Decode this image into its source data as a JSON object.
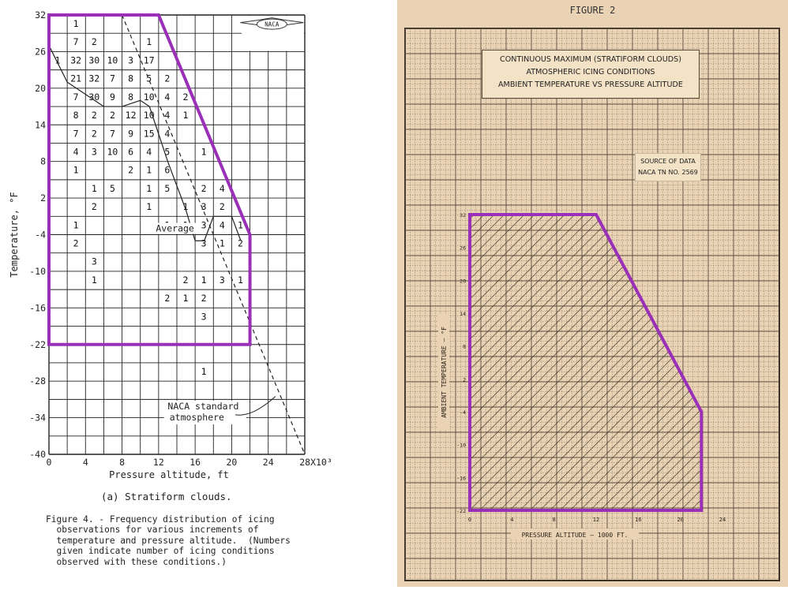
{
  "left": {
    "y_axis_label": "Temperature, °F",
    "x_axis_label": "Pressure altitude, ft",
    "x_tick_labels": [
      "0",
      "4",
      "8",
      "12",
      "16",
      "20",
      "24",
      "28X10³"
    ],
    "y_tick_labels": [
      "32",
      "26",
      "20",
      "14",
      "8",
      "2",
      "-4",
      "-10",
      "-16",
      "-22",
      "-28",
      "-34",
      "-40"
    ],
    "logo_text": "NACA",
    "subcaption": "(a) Stratiform clouds.",
    "caption": "Figure 4. - Frequency distribution of icing\n  observations for various increments of\n  temperature and pressure altitude.  (Numbers\n  given indicate number of icing conditions\n  observed with these conditions.)",
    "annotation_average": "Average",
    "annotation_naca_line1": "NACA standard",
    "annotation_naca_line2": "atmosphere",
    "colors": {
      "envelope": "#9b30b8",
      "grid": "#222222"
    }
  },
  "right": {
    "figure_label": "FIGURE 2",
    "title_line1": "CONTINUOUS MAXIMUM (STRATIFORM CLOUDS)",
    "title_line2": "ATMOSPHERIC ICING CONDITIONS",
    "title_line3": "AMBIENT TEMPERATURE VS PRESSURE ALTITUDE",
    "source_line1": "SOURCE OF DATA",
    "source_line2": "NACA TN NO. 2569",
    "y_axis_label": "AMBIENT TEMPERATURE – °F",
    "x_axis_label": "PRESSURE ALTITUDE – 1000 FT.",
    "x_tick_labels": [
      "0",
      "4",
      "8",
      "12",
      "16",
      "20",
      "24"
    ],
    "y_tick_labels": [
      "32",
      "26",
      "20",
      "14",
      "8",
      "2",
      "-4",
      "-10",
      "-16",
      "-22"
    ],
    "colors": {
      "paper": "#ead3b4",
      "envelope": "#9b30b8"
    }
  },
  "chart_data": [
    {
      "type": "table",
      "x_unit": "1000 ft",
      "y_unit": "°F",
      "xlim": [
        0,
        28
      ],
      "ylim": [
        -40,
        32
      ],
      "cells": [
        {
          "x": 2,
          "y": 32,
          "v": "1"
        },
        {
          "x": 2,
          "y": 29,
          "v": "7"
        },
        {
          "x": 4,
          "y": 29,
          "v": "2"
        },
        {
          "x": 10,
          "y": 29,
          "v": "1"
        },
        {
          "x": 0,
          "y": 26,
          "v": "1"
        },
        {
          "x": 2,
          "y": 26,
          "v": "32"
        },
        {
          "x": 4,
          "y": 26,
          "v": "30"
        },
        {
          "x": 6,
          "y": 26,
          "v": "10"
        },
        {
          "x": 8,
          "y": 26,
          "v": "3"
        },
        {
          "x": 10,
          "y": 26,
          "v": "17"
        },
        {
          "x": 2,
          "y": 23,
          "v": "21"
        },
        {
          "x": 4,
          "y": 23,
          "v": "32"
        },
        {
          "x": 6,
          "y": 23,
          "v": "7"
        },
        {
          "x": 8,
          "y": 23,
          "v": "8"
        },
        {
          "x": 10,
          "y": 23,
          "v": "5"
        },
        {
          "x": 12,
          "y": 23,
          "v": "2"
        },
        {
          "x": 2,
          "y": 20,
          "v": "7"
        },
        {
          "x": 4,
          "y": 20,
          "v": "30"
        },
        {
          "x": 6,
          "y": 20,
          "v": "9"
        },
        {
          "x": 8,
          "y": 20,
          "v": "8"
        },
        {
          "x": 10,
          "y": 20,
          "v": "10"
        },
        {
          "x": 12,
          "y": 20,
          "v": "4"
        },
        {
          "x": 14,
          "y": 20,
          "v": "2"
        },
        {
          "x": 2,
          "y": 17,
          "v": "8"
        },
        {
          "x": 4,
          "y": 17,
          "v": "2"
        },
        {
          "x": 6,
          "y": 17,
          "v": "2"
        },
        {
          "x": 8,
          "y": 17,
          "v": "12"
        },
        {
          "x": 10,
          "y": 17,
          "v": "10"
        },
        {
          "x": 12,
          "y": 17,
          "v": "4"
        },
        {
          "x": 14,
          "y": 17,
          "v": "1"
        },
        {
          "x": 2,
          "y": 14,
          "v": "7"
        },
        {
          "x": 4,
          "y": 14,
          "v": "2"
        },
        {
          "x": 6,
          "y": 14,
          "v": "7"
        },
        {
          "x": 8,
          "y": 14,
          "v": "9"
        },
        {
          "x": 10,
          "y": 14,
          "v": "15"
        },
        {
          "x": 12,
          "y": 14,
          "v": "4"
        },
        {
          "x": 2,
          "y": 11,
          "v": "4"
        },
        {
          "x": 4,
          "y": 11,
          "v": "3"
        },
        {
          "x": 6,
          "y": 11,
          "v": "10"
        },
        {
          "x": 8,
          "y": 11,
          "v": "6"
        },
        {
          "x": 10,
          "y": 11,
          "v": "4"
        },
        {
          "x": 12,
          "y": 11,
          "v": "5"
        },
        {
          "x": 16,
          "y": 11,
          "v": "1"
        },
        {
          "x": 2,
          "y": 8,
          "v": "1"
        },
        {
          "x": 8,
          "y": 8,
          "v": "2"
        },
        {
          "x": 10,
          "y": 8,
          "v": "1"
        },
        {
          "x": 12,
          "y": 8,
          "v": "6"
        },
        {
          "x": 4,
          "y": 5,
          "v": "1"
        },
        {
          "x": 6,
          "y": 5,
          "v": "5"
        },
        {
          "x": 10,
          "y": 5,
          "v": "1"
        },
        {
          "x": 12,
          "y": 5,
          "v": "5"
        },
        {
          "x": 16,
          "y": 5,
          "v": "2"
        },
        {
          "x": 18,
          "y": 5,
          "v": "4"
        },
        {
          "x": 4,
          "y": 2,
          "v": "2"
        },
        {
          "x": 10,
          "y": 2,
          "v": "1"
        },
        {
          "x": 14,
          "y": 2,
          "v": "1"
        },
        {
          "x": 16,
          "y": 2,
          "v": "3"
        },
        {
          "x": 18,
          "y": 2,
          "v": "2"
        },
        {
          "x": 2,
          "y": -1,
          "v": "1"
        },
        {
          "x": 12,
          "y": -1,
          "v": "1"
        },
        {
          "x": 14,
          "y": -1,
          "v": "1"
        },
        {
          "x": 16,
          "y": -1,
          "v": "3"
        },
        {
          "x": 18,
          "y": -1,
          "v": "4"
        },
        {
          "x": 20,
          "y": -1,
          "v": "1"
        },
        {
          "x": 2,
          "y": -4,
          "v": "2"
        },
        {
          "x": 16,
          "y": -4,
          "v": "3"
        },
        {
          "x": 18,
          "y": -4,
          "v": "1"
        },
        {
          "x": 20,
          "y": -4,
          "v": "2"
        },
        {
          "x": 4,
          "y": -7,
          "v": "3"
        },
        {
          "x": 4,
          "y": -10,
          "v": "1"
        },
        {
          "x": 14,
          "y": -10,
          "v": "2"
        },
        {
          "x": 16,
          "y": -10,
          "v": "1"
        },
        {
          "x": 18,
          "y": -10,
          "v": "3"
        },
        {
          "x": 20,
          "y": -10,
          "v": "1"
        },
        {
          "x": 12,
          "y": -13,
          "v": "2"
        },
        {
          "x": 14,
          "y": -13,
          "v": "1"
        },
        {
          "x": 16,
          "y": -13,
          "v": "2"
        },
        {
          "x": 16,
          "y": -16,
          "v": "3"
        },
        {
          "x": 16,
          "y": -25,
          "v": "1"
        }
      ],
      "average_line": {
        "x": [
          0,
          2,
          6,
          8,
          10,
          11,
          13,
          15,
          16,
          17,
          18,
          20,
          21
        ],
        "y": [
          27,
          21,
          17,
          17,
          18,
          17,
          8,
          0,
          -5,
          -5,
          -1,
          -1,
          -5
        ]
      },
      "naca_standard_atmosphere": {
        "x": [
          8,
          28
        ],
        "y": [
          32,
          -40
        ]
      },
      "envelope": {
        "x": [
          0,
          12,
          22,
          22,
          0
        ],
        "y": [
          32,
          32,
          -4,
          -22,
          -22
        ]
      }
    },
    {
      "type": "area",
      "xlim": [
        0,
        24
      ],
      "ylim": [
        -22,
        32
      ],
      "envelope": {
        "x": [
          0,
          12,
          22,
          22,
          0
        ],
        "y": [
          32,
          32,
          -4,
          -22,
          -22
        ]
      },
      "fill": "hatched"
    }
  ]
}
